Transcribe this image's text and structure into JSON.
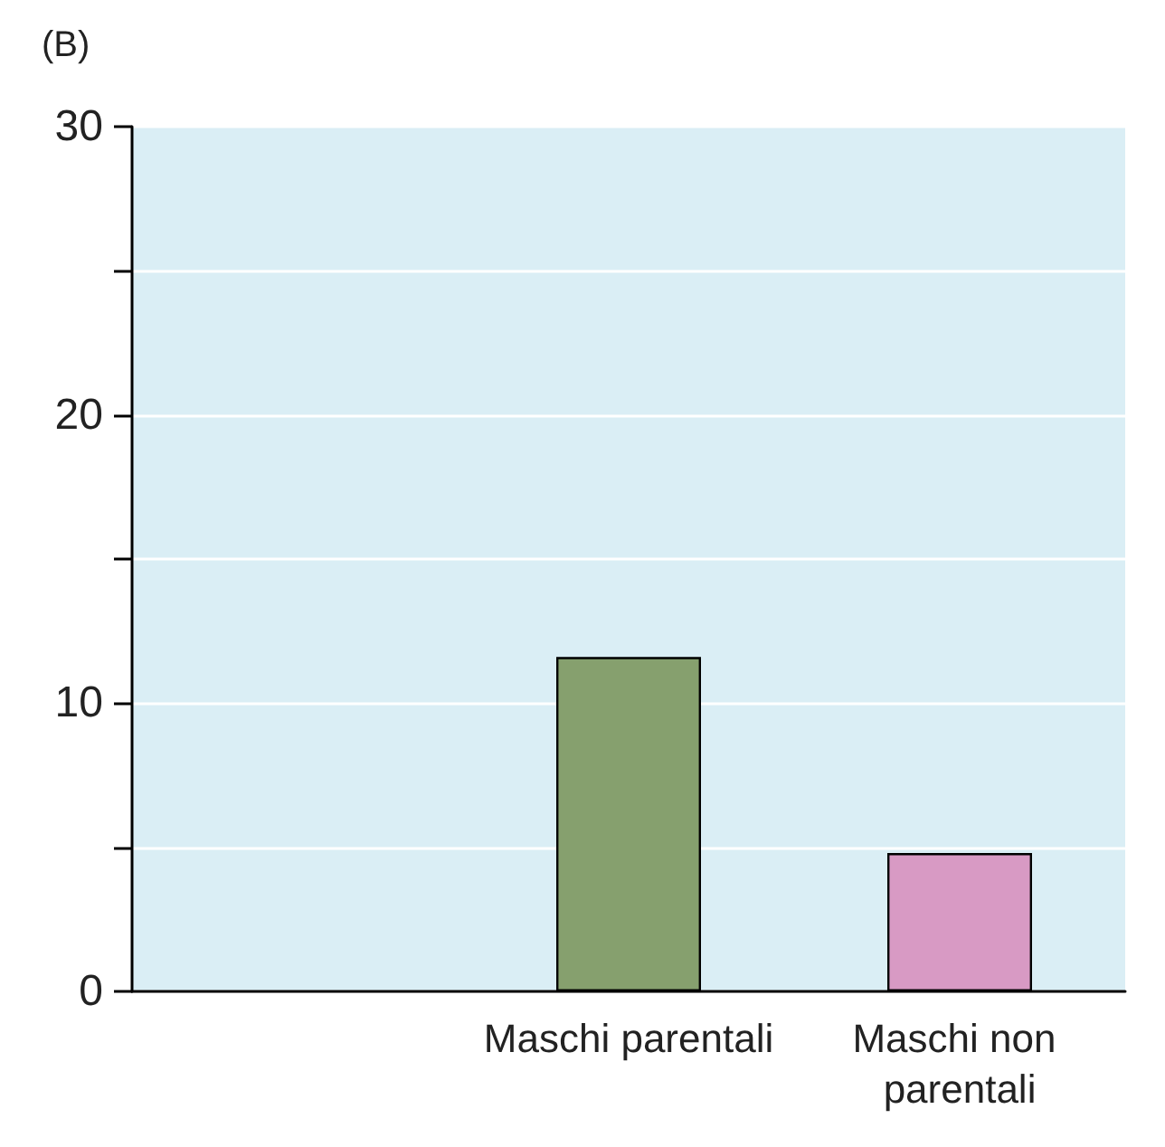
{
  "chart_data": {
    "type": "bar",
    "title": "(B)",
    "categories": [
      null,
      "Maschi parentali",
      "Maschi non parentali"
    ],
    "values": [
      null,
      11.6,
      4.8
    ],
    "colors": [
      "#86a06e",
      "#86a06e",
      "#d89ac4"
    ],
    "ylim": [
      0,
      30
    ],
    "yticks": [
      0,
      {
        "value": 5,
        "label": null
      },
      10,
      {
        "value": 15,
        "label": null
      },
      20,
      {
        "value": 25,
        "label": null
      },
      30
    ],
    "grid": "y"
  }
}
